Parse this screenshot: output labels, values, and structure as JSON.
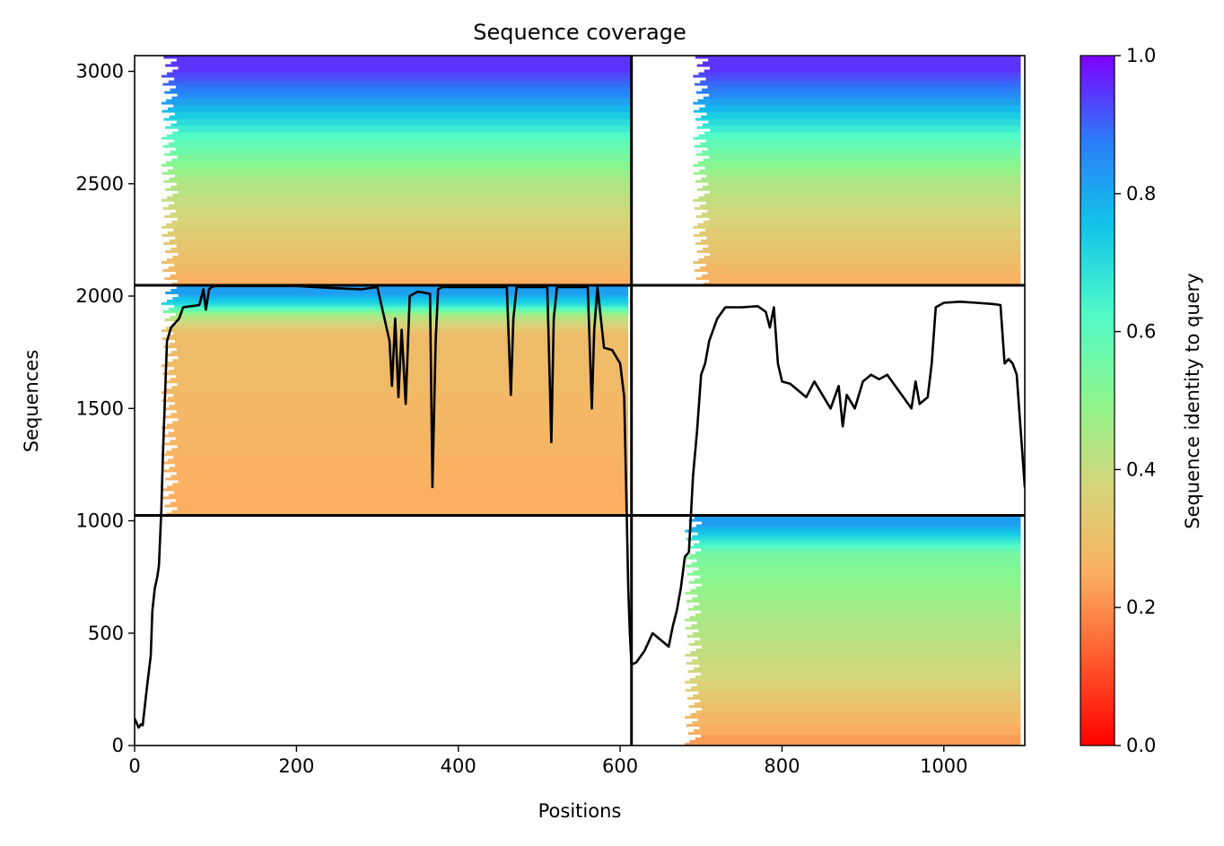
{
  "chart_data": {
    "type": "heatmap",
    "title": "Sequence coverage",
    "xlabel": "Positions",
    "ylabel": "Sequences",
    "xlim": [
      0,
      1100
    ],
    "ylim": [
      0,
      3070
    ],
    "xticks": [
      0,
      200,
      400,
      600,
      800,
      1000
    ],
    "xtick_labels": [
      "0",
      "200",
      "400",
      "600",
      "800",
      "1000"
    ],
    "yticks": [
      0,
      500,
      1000,
      1500,
      2000,
      2500,
      3000
    ],
    "ytick_labels": [
      "0",
      "500",
      "1000",
      "1500",
      "2000",
      "2500",
      "3000"
    ],
    "colorbar": {
      "label": "Sequence identity to query",
      "colormap": "rainbow_r",
      "range": [
        0,
        1
      ],
      "ticks": [
        0.0,
        0.2,
        0.4,
        0.6,
        0.8,
        1.0
      ],
      "tick_labels": [
        "0.0",
        "0.2",
        "0.4",
        "0.6",
        "0.8",
        "1.0"
      ]
    },
    "dividers": {
      "vertical_x": 614,
      "horizontal_y": [
        1024,
        2048
      ]
    },
    "blocks": [
      {
        "x": [
          0,
          614
        ],
        "y": [
          2048,
          3070
        ],
        "start_x": 33,
        "end_x": 614,
        "identity_bands": [
          [
            2048,
            0.25
          ],
          [
            2200,
            0.32
          ],
          [
            2500,
            0.45
          ],
          [
            2700,
            0.62
          ],
          [
            2880,
            0.85
          ],
          [
            3000,
            0.95
          ]
        ]
      },
      {
        "x": [
          614,
          1100
        ],
        "y": [
          2048,
          3070
        ],
        "start_x": 690,
        "end_x": 1095,
        "identity_bands": [
          [
            2048,
            0.25
          ],
          [
            2200,
            0.32
          ],
          [
            2500,
            0.45
          ],
          [
            2700,
            0.62
          ],
          [
            2880,
            0.85
          ],
          [
            3000,
            0.95
          ]
        ]
      },
      {
        "x": [
          0,
          614
        ],
        "y": [
          1024,
          2048
        ],
        "start_x": 33,
        "end_x": 610,
        "identity_bands": [
          [
            1024,
            0.25
          ],
          [
            1830,
            0.3
          ],
          [
            1910,
            0.45
          ],
          [
            1960,
            0.7
          ],
          [
            2010,
            0.82
          ]
        ]
      },
      {
        "x": [
          614,
          1100
        ],
        "y": [
          0,
          1024
        ],
        "start_x": 680,
        "end_x": 1095,
        "identity_bands": [
          [
            0,
            0.22
          ],
          [
            290,
            0.38
          ],
          [
            550,
            0.45
          ],
          [
            850,
            0.55
          ],
          [
            920,
            0.7
          ],
          [
            980,
            0.82
          ]
        ]
      }
    ],
    "coverage_line": {
      "name": "coverage",
      "x": [
        0,
        5,
        8,
        10,
        15,
        20,
        22,
        25,
        28,
        30,
        33,
        35,
        38,
        40,
        45,
        55,
        60,
        70,
        80,
        85,
        88,
        92,
        95,
        100,
        150,
        200,
        250,
        280,
        300,
        315,
        318,
        322,
        326,
        330,
        335,
        340,
        350,
        365,
        368,
        372,
        375,
        380,
        400,
        460,
        465,
        468,
        472,
        480,
        510,
        515,
        518,
        522,
        530,
        560,
        565,
        568,
        572,
        580,
        590,
        600,
        605,
        608,
        610,
        612,
        614,
        620,
        630,
        640,
        650,
        660,
        665,
        670,
        675,
        680,
        685,
        690,
        695,
        700,
        705,
        710,
        720,
        730,
        750,
        770,
        780,
        785,
        790,
        795,
        800,
        810,
        820,
        830,
        840,
        850,
        860,
        870,
        875,
        880,
        890,
        900,
        910,
        920,
        930,
        940,
        950,
        960,
        965,
        970,
        980,
        985,
        990,
        1000,
        1020,
        1040,
        1060,
        1070,
        1075,
        1080,
        1085,
        1090,
        1095,
        1100
      ],
      "y": [
        120,
        80,
        95,
        90,
        250,
        400,
        600,
        700,
        750,
        800,
        1050,
        1300,
        1600,
        1800,
        1860,
        1900,
        1950,
        1955,
        1960,
        2030,
        1940,
        2030,
        2040,
        2045,
        2045,
        2045,
        2035,
        2030,
        2040,
        1800,
        1600,
        1900,
        1550,
        1850,
        1520,
        2000,
        2020,
        2010,
        1150,
        1800,
        2030,
        2040,
        2040,
        2040,
        1560,
        1900,
        2040,
        2040,
        2040,
        1350,
        1900,
        2040,
        2040,
        2040,
        1500,
        1850,
        2040,
        1770,
        1760,
        1700,
        1550,
        1050,
        700,
        500,
        360,
        370,
        420,
        500,
        470,
        440,
        530,
        600,
        700,
        840,
        860,
        1200,
        1400,
        1650,
        1700,
        1800,
        1900,
        1950,
        1950,
        1955,
        1930,
        1860,
        1950,
        1700,
        1620,
        1610,
        1580,
        1550,
        1620,
        1560,
        1500,
        1600,
        1420,
        1560,
        1500,
        1620,
        1650,
        1630,
        1650,
        1600,
        1550,
        1500,
        1620,
        1520,
        1550,
        1700,
        1950,
        1970,
        1975,
        1970,
        1965,
        1960,
        1700,
        1720,
        1700,
        1650,
        1400,
        1150
      ]
    }
  }
}
